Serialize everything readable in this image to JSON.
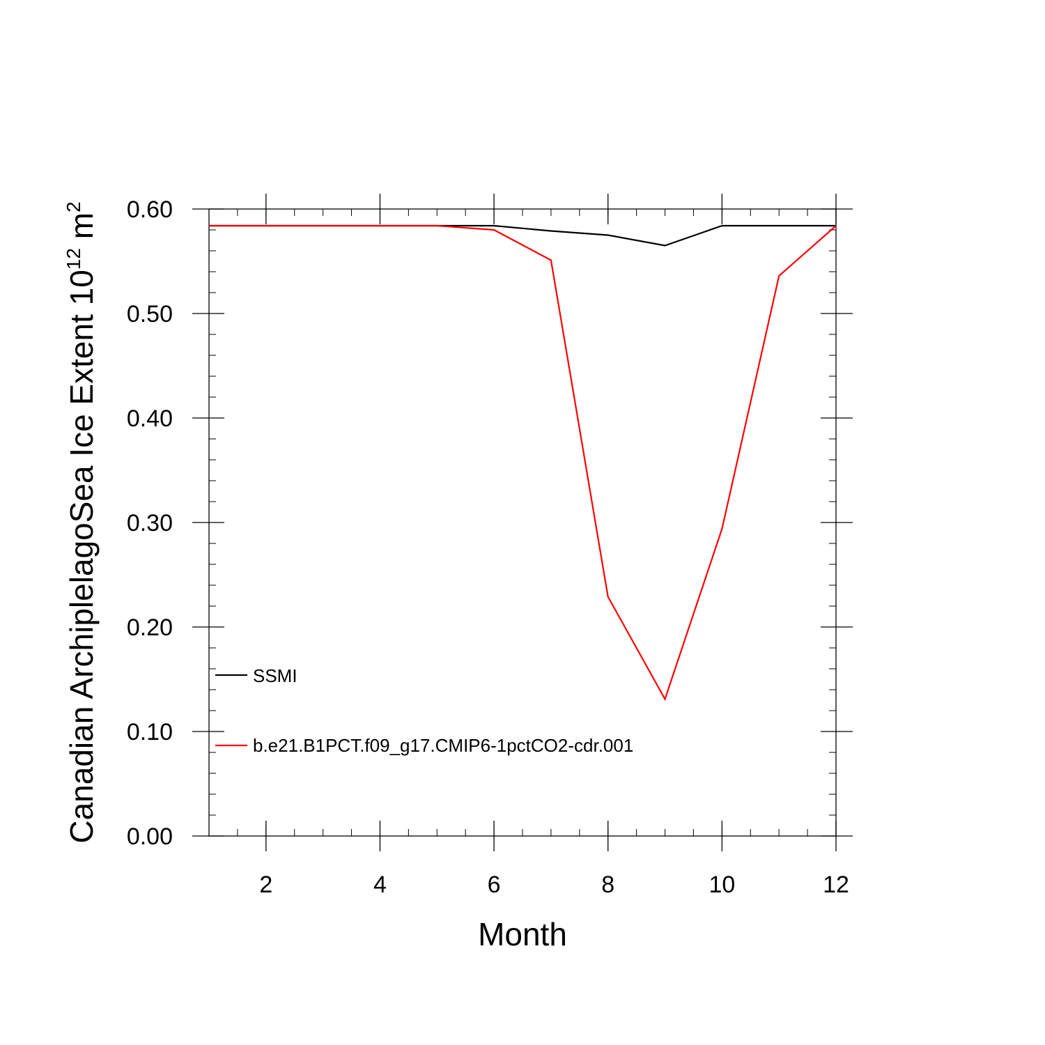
{
  "chart_data": {
    "type": "line",
    "xlabel": "Month",
    "ylabel": {
      "text": "Canadian ArchiplelagoSea Ice Extent 10",
      "superscript_1": "12",
      "unit": " m",
      "superscript_2": "2"
    },
    "xlim": [
      1,
      12
    ],
    "ylim": [
      0.0,
      0.6
    ],
    "x_ticks": [
      2,
      4,
      6,
      8,
      10,
      12
    ],
    "x_tick_labels": [
      "2",
      "4",
      "6",
      "8",
      "10",
      "12"
    ],
    "y_ticks": [
      0.0,
      0.1,
      0.2,
      0.3,
      0.4,
      0.5,
      0.6
    ],
    "y_tick_labels": [
      "0.00",
      "0.10",
      "0.20",
      "0.30",
      "0.40",
      "0.50",
      "0.60"
    ],
    "grid": false,
    "legend_placement": "lower-left",
    "x": [
      1,
      2,
      3,
      4,
      5,
      6,
      7,
      8,
      9,
      10,
      11,
      12
    ],
    "series": [
      {
        "name": "SSMI",
        "color": "#000000",
        "values": [
          0.584,
          0.584,
          0.584,
          0.584,
          0.584,
          0.584,
          0.579,
          0.575,
          0.565,
          0.584,
          0.584,
          0.584
        ]
      },
      {
        "name": "b.e21.B1PCT.f09_g17.CMIP6-1pctCO2-cdr.001",
        "color": "#ff0000",
        "values": [
          0.584,
          0.584,
          0.584,
          0.584,
          0.584,
          0.58,
          0.551,
          0.229,
          0.131,
          0.294,
          0.536,
          0.584
        ]
      }
    ]
  }
}
